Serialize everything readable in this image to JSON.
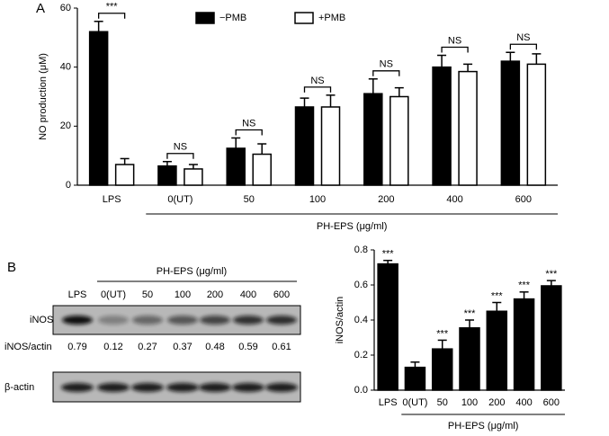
{
  "chart_data": [
    {
      "type": "bar",
      "panel_label": "A",
      "y_label": "NO production (μM)",
      "categories": [
        "LPS",
        "0(UT)",
        "50",
        "100",
        "200",
        "400",
        "600"
      ],
      "group_label": "PH-EPS (μg/ml)",
      "ylim": [
        0,
        60
      ],
      "yticks": [
        0,
        20,
        40,
        60
      ],
      "series": [
        {
          "name": "−PMB",
          "color": "#000000",
          "values": [
            52,
            6.5,
            12.5,
            26.5,
            31,
            40,
            42
          ],
          "errors": [
            3.5,
            1.5,
            3.5,
            3,
            5,
            4,
            3
          ]
        },
        {
          "name": "+PMB",
          "color": "#ffffff",
          "values": [
            7,
            5.5,
            10.5,
            26.5,
            30,
            38.5,
            41
          ],
          "errors": [
            2,
            1.5,
            3.5,
            4,
            3,
            2.5,
            3.5
          ]
        }
      ],
      "annotations": [
        "***",
        "NS",
        "NS",
        "NS",
        "NS",
        "NS",
        "NS"
      ]
    },
    {
      "type": "bar",
      "y_label": "iNOS/actin",
      "categories": [
        "LPS",
        "0(UT)",
        "50",
        "100",
        "200",
        "400",
        "600"
      ],
      "group_label": "PH-EPS (μg/ml)",
      "ylim": [
        0,
        0.8
      ],
      "yticks": [
        {
          "value": 0,
          "label": "0.0"
        },
        0.2,
        0.4,
        0.6,
        0.8
      ],
      "series": [
        {
          "color": "#000000",
          "values": [
            0.72,
            0.13,
            0.235,
            0.355,
            0.45,
            0.52,
            0.595
          ],
          "errors": [
            0.02,
            0.03,
            0.05,
            0.045,
            0.05,
            0.04,
            0.03
          ]
        }
      ],
      "annotations": [
        "***",
        null,
        "***",
        "***",
        "***",
        "***",
        "***"
      ]
    }
  ],
  "blot": {
    "panel_label": "B",
    "header": "PH-EPS (μg/ml)",
    "lanes": [
      "LPS",
      "0(UT)",
      "50",
      "100",
      "200",
      "400",
      "600"
    ],
    "band_label": "iNOS",
    "ratio_label": "iNOS/actin",
    "ratios": [
      0.79,
      0.12,
      0.27,
      0.37,
      0.48,
      0.59,
      0.61
    ],
    "control_label": "β-actin"
  }
}
